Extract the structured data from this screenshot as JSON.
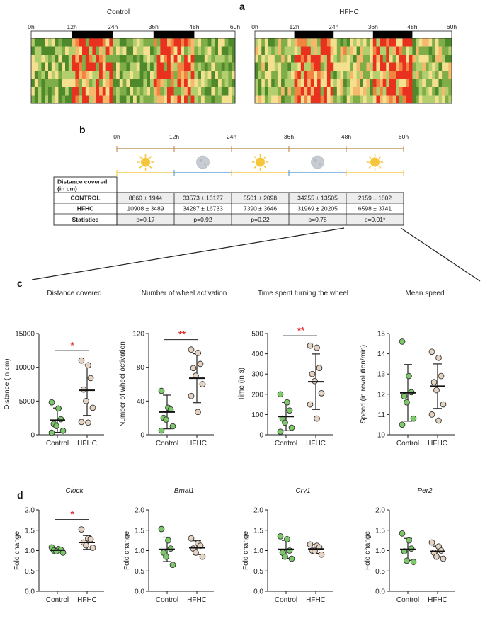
{
  "panels": {
    "a": {
      "letter": "a",
      "time_ticks": [
        "0h",
        "12h",
        "24h",
        "36h",
        "48h",
        "60h"
      ],
      "heatmaps": [
        {
          "label": "Control",
          "rows": 8,
          "cols": 60,
          "seed": 11,
          "hot_bias": 0.0
        },
        {
          "label": "HFHC",
          "rows": 8,
          "cols": 60,
          "seed": 29,
          "hot_bias": 0.18
        }
      ],
      "colors": {
        "dark_green": "#4e8a2c",
        "green": "#7fae49",
        "light_green": "#b3cf6d",
        "light_yellow": "#f4e08f",
        "orange": "#f6b86b",
        "dark_orange": "#f08440",
        "red": "#e8311f"
      },
      "dark_phases_h": [
        [
          12,
          24
        ],
        [
          36,
          48
        ]
      ]
    },
    "b": {
      "letter": "b",
      "time_ticks": [
        "0h",
        "12h",
        "24h",
        "36h",
        "48h",
        "60h"
      ],
      "phases": [
        "sun",
        "moon",
        "sun",
        "moon",
        "sun"
      ],
      "phase_colors": {
        "sun": "#f2c12e",
        "moon": "#4a90c9",
        "axis": "#b5813f",
        "sun_fill": "#f5c53b",
        "moon_fill": "#c7ccd3"
      },
      "table": {
        "header": "Distance covered (in cm)",
        "rows": [
          {
            "label": "CONTROL",
            "cells": [
              "8860 ± 1944",
              "33573 ± 13127",
              "5501 ± 2098",
              "34255 ± 13505",
              "2159 ± 1802"
            ]
          },
          {
            "label": "HFHC",
            "cells": [
              "10908 ± 3489",
              "34287 ± 16733",
              "7390 ± 3646",
              "31969 ± 20205",
              "6598 ± 3741"
            ]
          },
          {
            "label": "Statistics",
            "cells": [
              "p=0.17",
              "p=0.92",
              "p=0.22",
              "p=0.78",
              "p=0.01*"
            ]
          }
        ]
      }
    },
    "c": {
      "letter": "c"
    },
    "d": {
      "letter": "d"
    }
  },
  "group_colors": {
    "control": "#7cc96a",
    "hfhc": "#e6d3c2",
    "edge": "#333333",
    "sig": "#e23030"
  },
  "chart_data": [
    {
      "panel": "c",
      "type": "scatter",
      "title": "Distance covered",
      "title_italic": false,
      "ylabel": "Distance (in cm)",
      "ylim": [
        0,
        15000
      ],
      "yticks": [
        0,
        5000,
        10000,
        15000
      ],
      "categories": [
        "Control",
        "HFHC"
      ],
      "series": [
        {
          "name": "Control",
          "values": [
            4800,
            3900,
            2300,
            1600,
            1300,
            600,
            300
          ],
          "mean": 2159,
          "sd": 1802
        },
        {
          "name": "HFHC",
          "values": [
            11000,
            10300,
            8400,
            6700,
            5000,
            4000,
            1900,
            1800
          ],
          "mean": 6598,
          "sd": 3741
        }
      ],
      "significance": "*"
    },
    {
      "panel": "c",
      "type": "scatter",
      "title": "Number of wheel activation",
      "title_italic": false,
      "ylabel": "Number of wheel activation",
      "ylim": [
        0,
        120
      ],
      "yticks": [
        0,
        40,
        80,
        120
      ],
      "categories": [
        "Control",
        "HFHC"
      ],
      "series": [
        {
          "name": "Control",
          "values": [
            52,
            32,
            30,
            20,
            18,
            10,
            5
          ],
          "mean": 27,
          "sd": 20
        },
        {
          "name": "HFHC",
          "values": [
            101,
            97,
            84,
            79,
            70,
            60,
            46,
            27
          ],
          "mean": 67,
          "sd": 29
        }
      ],
      "significance": "**"
    },
    {
      "panel": "c",
      "type": "scatter",
      "title": "Time spent turning the wheel",
      "title_italic": false,
      "ylabel": "Time (in s)",
      "ylim": [
        0,
        500
      ],
      "yticks": [
        0,
        100,
        200,
        300,
        400,
        500
      ],
      "categories": [
        "Control",
        "HFHC"
      ],
      "series": [
        {
          "name": "Control",
          "values": [
            200,
            160,
            120,
            80,
            60,
            35,
            15
          ],
          "mean": 90,
          "sd": 70
        },
        {
          "name": "HFHC",
          "values": [
            440,
            430,
            330,
            300,
            265,
            205,
            150,
            80
          ],
          "mean": 262,
          "sd": 137
        }
      ],
      "significance": "**"
    },
    {
      "panel": "c",
      "type": "scatter",
      "title": "Mean speed",
      "title_italic": false,
      "ylabel": "Speed (in revolution/min)",
      "ylim": [
        10,
        15
      ],
      "yticks": [
        10,
        11,
        12,
        13,
        14,
        15
      ],
      "categories": [
        "Control",
        "HFHC"
      ],
      "series": [
        {
          "name": "Control",
          "values": [
            14.6,
            12.9,
            12.1,
            11.9,
            11.6,
            10.8,
            10.5
          ],
          "mean": 12.07,
          "sd": 1.4
        },
        {
          "name": "HFHC",
          "values": [
            14.1,
            13.8,
            12.9,
            12.6,
            12.2,
            11.5,
            11.0,
            10.7
          ],
          "mean": 12.4,
          "sd": 1.1
        }
      ],
      "significance": ""
    },
    {
      "panel": "d",
      "type": "scatter",
      "title": "Clock",
      "title_italic": true,
      "ylabel": "Fold change",
      "ylim": [
        0,
        2
      ],
      "yticks": [
        0.0,
        0.5,
        1.0,
        1.5,
        2.0
      ],
      "categories": [
        "Control",
        "HFHC"
      ],
      "series": [
        {
          "name": "Control",
          "values": [
            1.08,
            1.04,
            1.02,
            1.0,
            0.98,
            0.95
          ],
          "mean": 1.01,
          "sd": 0.05
        },
        {
          "name": "HFHC",
          "values": [
            1.52,
            1.3,
            1.28,
            1.2,
            1.13,
            1.07
          ],
          "mean": 1.2,
          "sd": 0.17
        }
      ],
      "significance": "*"
    },
    {
      "panel": "d",
      "type": "scatter",
      "title": "Bmal1",
      "title_italic": true,
      "ylabel": "Fold change",
      "ylim": [
        0,
        2
      ],
      "yticks": [
        0.0,
        0.5,
        1.0,
        1.5,
        2.0
      ],
      "categories": [
        "Control",
        "HFHC"
      ],
      "series": [
        {
          "name": "Control",
          "values": [
            1.53,
            1.25,
            1.05,
            0.95,
            0.85,
            0.65
          ],
          "mean": 1.03,
          "sd": 0.3
        },
        {
          "name": "HFHC",
          "values": [
            1.3,
            1.18,
            1.12,
            1.05,
            0.95,
            0.85
          ],
          "mean": 1.07,
          "sd": 0.17
        }
      ],
      "significance": ""
    },
    {
      "panel": "d",
      "type": "scatter",
      "title": "Cry1",
      "title_italic": true,
      "ylabel": "Fold change",
      "ylim": [
        0,
        2
      ],
      "yticks": [
        0.0,
        0.5,
        1.0,
        1.5,
        2.0
      ],
      "categories": [
        "Control",
        "HFHC"
      ],
      "series": [
        {
          "name": "Control",
          "values": [
            1.35,
            1.28,
            1.0,
            0.95,
            0.85,
            0.8
          ],
          "mean": 1.03,
          "sd": 0.22
        },
        {
          "name": "HFHC",
          "values": [
            1.15,
            1.12,
            1.08,
            1.0,
            0.98,
            0.9
          ],
          "mean": 1.04,
          "sd": 0.11
        }
      ],
      "significance": ""
    },
    {
      "panel": "d",
      "type": "scatter",
      "title": "Per2",
      "title_italic": true,
      "ylabel": "Fold change",
      "ylim": [
        0,
        2
      ],
      "yticks": [
        0.0,
        0.5,
        1.0,
        1.5,
        2.0
      ],
      "categories": [
        "Control",
        "HFHC"
      ],
      "series": [
        {
          "name": "Control",
          "values": [
            1.42,
            1.25,
            1.05,
            0.98,
            0.75,
            0.72
          ],
          "mean": 1.03,
          "sd": 0.27
        },
        {
          "name": "HFHC",
          "values": [
            1.2,
            1.1,
            1.0,
            0.95,
            0.85,
            0.8
          ],
          "mean": 0.98,
          "sd": 0.13
        }
      ],
      "significance": ""
    }
  ]
}
